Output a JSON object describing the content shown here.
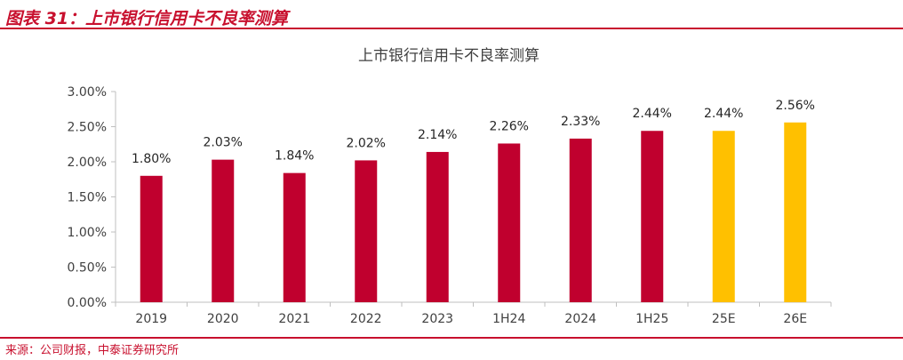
{
  "figure": {
    "title": "图表 31：上市银行信用卡不良率测算",
    "source": "来源：公司财报，中泰证券研究所"
  },
  "colors": {
    "accent": "#c8102e",
    "actual": "#c0002e",
    "estimate": "#ffc000"
  },
  "chart_data": {
    "type": "bar",
    "title": "上市银行信用卡不良率测算",
    "xlabel": "",
    "ylabel": "",
    "categories": [
      "2019",
      "2020",
      "2021",
      "2022",
      "2023",
      "1H24",
      "2024",
      "1H25",
      "25E",
      "26E"
    ],
    "values": [
      1.8,
      2.03,
      1.84,
      2.02,
      2.14,
      2.26,
      2.33,
      2.44,
      2.44,
      2.56
    ],
    "data_labels": [
      "1.80%",
      "2.03%",
      "1.84%",
      "2.02%",
      "2.14%",
      "2.26%",
      "2.33%",
      "2.44%",
      "2.44%",
      "2.56%"
    ],
    "estimate": [
      false,
      false,
      false,
      false,
      false,
      false,
      false,
      false,
      true,
      true
    ],
    "ylim": [
      0,
      3.0
    ],
    "yticks": [
      0,
      0.5,
      1.0,
      1.5,
      2.0,
      2.5,
      3.0
    ],
    "ytick_labels": [
      "0.00%",
      "0.50%",
      "1.00%",
      "1.50%",
      "2.00%",
      "2.50%",
      "3.00%"
    ],
    "grid": false,
    "legend": "none"
  }
}
